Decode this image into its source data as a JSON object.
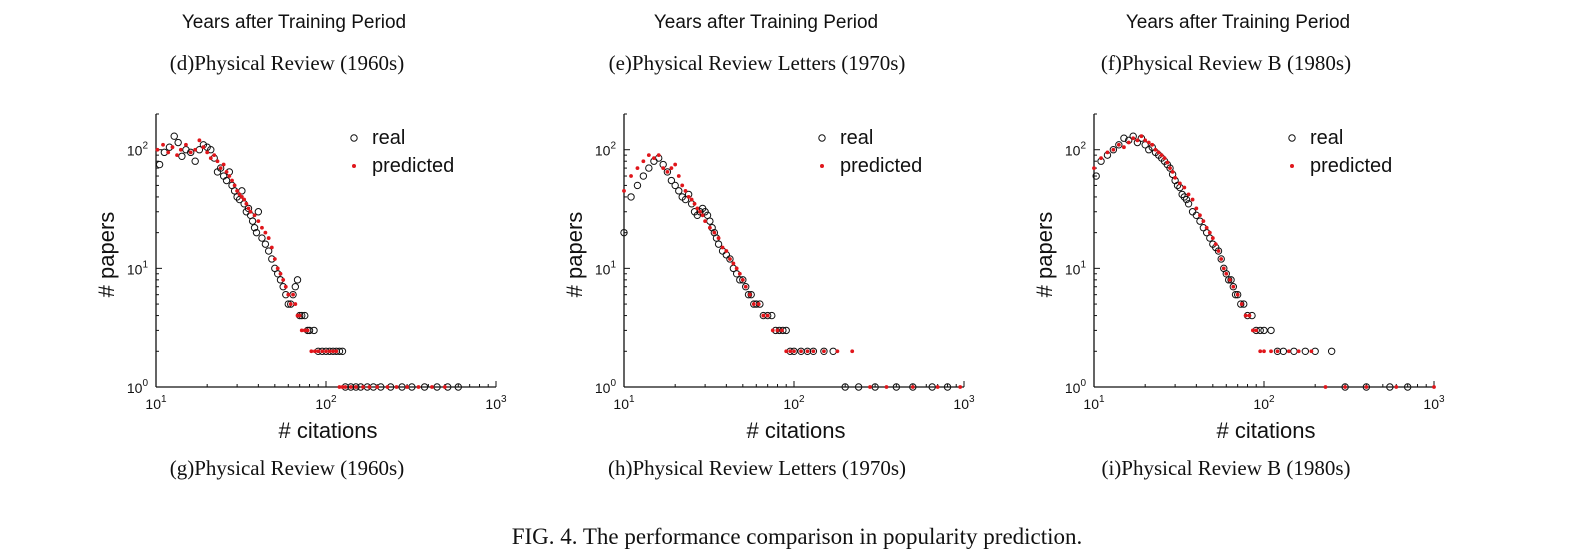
{
  "top_row": {
    "xlabels": [
      "Years after Training Period",
      "Years after Training Period",
      "Years after Training Period"
    ],
    "captions": [
      "(d)Physical Review (1960s)",
      "(e)Physical Review Letters (1970s)",
      "(f)Physical Review B (1980s)"
    ]
  },
  "figure_caption": "FIG. 4. The performance comparison in popularity prediction.",
  "colors": {
    "real": "#111111",
    "predicted": "#e0161b"
  },
  "chart_data": [
    {
      "type": "scatter",
      "caption": "(g)Physical Review (1960s)",
      "xlabel": "# citations",
      "ylabel": "# papers",
      "xscale": "log",
      "yscale": "log",
      "xlim": [
        10,
        1000
      ],
      "ylim": [
        1,
        200
      ],
      "xticks": [
        10,
        100,
        1000
      ],
      "xtick_labels": [
        "10",
        "10",
        "10"
      ],
      "xtick_exps": [
        "1",
        "2",
        "3"
      ],
      "yticks": [
        1,
        10,
        100
      ],
      "ytick_labels": [
        "10",
        "10",
        "10"
      ],
      "ytick_exps": [
        "0",
        "1",
        "2"
      ],
      "legend": [
        "real",
        "predicted"
      ],
      "legend_position": "top-right",
      "series": [
        {
          "name": "real",
          "marker": "open-circle",
          "x": [
            10.5,
            11.2,
            12.0,
            12.8,
            13.5,
            14.2,
            15.0,
            16.0,
            17.0,
            18.0,
            19.0,
            20.0,
            21.0,
            22.0,
            23.0,
            24.0,
            25.0,
            26.0,
            27.0,
            28.0,
            29.0,
            30.0,
            31.0,
            32.0,
            33.0,
            34.0,
            35.0,
            36.0,
            37.0,
            38.0,
            39.0,
            40.0,
            42.0,
            44.0,
            46.0,
            48.0,
            50.0,
            52.0,
            54.0,
            56.0,
            58.0,
            60.0,
            62.0,
            64.0,
            66.0,
            68.0,
            70.0,
            72.0,
            75.0,
            78.0,
            80.0,
            85.0,
            90.0,
            95.0,
            100.0,
            105.0,
            110.0,
            115.0,
            120.0,
            125.0,
            130.0,
            140.0,
            150.0,
            160.0,
            175.0,
            190.0,
            210.0,
            240.0,
            280.0,
            320.0,
            380.0,
            450.0,
            520.0,
            600.0
          ],
          "y": [
            75,
            95,
            105,
            130,
            115,
            88,
            100,
            95,
            80,
            100,
            110,
            105,
            100,
            85,
            65,
            70,
            60,
            55,
            65,
            50,
            45,
            40,
            38,
            45,
            35,
            30,
            32,
            28,
            25,
            22,
            20,
            30,
            18,
            16,
            14,
            12,
            10,
            9,
            8,
            7,
            6,
            5,
            5,
            6,
            7,
            8,
            4,
            4,
            4,
            3,
            3,
            3,
            2,
            2,
            2,
            2,
            2,
            2,
            2,
            2,
            1,
            1,
            1,
            1,
            1,
            1,
            1,
            1,
            1,
            1,
            1,
            1,
            1,
            1
          ]
        },
        {
          "name": "predicted",
          "marker": "dot",
          "x": [
            10.2,
            11.0,
            11.8,
            12.5,
            13.3,
            14.0,
            15.0,
            16.0,
            17.0,
            18.0,
            19.0,
            20.0,
            21.0,
            22.0,
            23.0,
            24.0,
            25.0,
            26.0,
            27.0,
            28.0,
            29.0,
            30.0,
            31.0,
            32.0,
            33.0,
            34.0,
            35.0,
            36.0,
            38.0,
            40.0,
            42.0,
            44.0,
            46.0,
            48.0,
            50.0,
            52.0,
            54.0,
            56.0,
            58.0,
            60.0,
            62.0,
            64.0,
            66.0,
            68.0,
            70.0,
            72.0,
            75.0,
            78.0,
            82.0,
            86.0,
            90.0,
            95.0,
            100.0,
            105.0,
            110.0,
            115.0,
            120.0,
            125.0,
            130.0,
            140.0,
            150.0,
            165.0,
            180.0,
            200.0,
            230.0,
            260.0,
            300.0,
            350.0,
            420.0,
            500.0
          ],
          "y": [
            100,
            110,
            95,
            105,
            90,
            100,
            110,
            95,
            100,
            120,
            105,
            95,
            85,
            90,
            80,
            70,
            75,
            65,
            60,
            55,
            50,
            45,
            42,
            40,
            38,
            35,
            32,
            30,
            28,
            25,
            22,
            20,
            18,
            15,
            12,
            10,
            9,
            8,
            7,
            6,
            5,
            6,
            5,
            4,
            4,
            3,
            3,
            3,
            2,
            2,
            2,
            2,
            2,
            2,
            2,
            2,
            1,
            1,
            1,
            1,
            1,
            1,
            1,
            1,
            1,
            1,
            1,
            1,
            1,
            1
          ]
        }
      ]
    },
    {
      "type": "scatter",
      "caption": "(h)Physical Review Letters (1970s)",
      "xlabel": "# citations",
      "ylabel": "# papers",
      "xscale": "log",
      "yscale": "log",
      "xlim": [
        10,
        1000
      ],
      "ylim": [
        1,
        200
      ],
      "xticks": [
        10,
        100,
        1000
      ],
      "xtick_labels": [
        "10",
        "10",
        "10"
      ],
      "xtick_exps": [
        "1",
        "2",
        "3"
      ],
      "yticks": [
        1,
        10,
        100
      ],
      "ytick_labels": [
        "10",
        "10",
        "10"
      ],
      "ytick_exps": [
        "0",
        "1",
        "2"
      ],
      "legend": [
        "real",
        "predicted"
      ],
      "legend_position": "top-right",
      "series": [
        {
          "name": "real",
          "marker": "open-circle",
          "x": [
            10.0,
            11.0,
            12.0,
            13.0,
            14.0,
            15.0,
            16.0,
            17.0,
            18.0,
            19.0,
            20.0,
            21.0,
            22.0,
            23.0,
            24.0,
            25.0,
            26.0,
            27.0,
            28.0,
            29.0,
            30.0,
            31.0,
            32.0,
            33.0,
            34.0,
            35.0,
            36.0,
            38.0,
            40.0,
            42.0,
            44.0,
            46.0,
            48.0,
            50.0,
            52.0,
            54.0,
            56.0,
            58.0,
            60.0,
            63.0,
            66.0,
            70.0,
            74.0,
            78.0,
            82.0,
            86.0,
            90.0,
            95.0,
            100.0,
            110.0,
            120.0,
            130.0,
            150.0,
            170.0,
            200.0,
            240.0,
            300.0,
            400.0,
            500.0,
            650.0,
            800.0
          ],
          "y": [
            20,
            40,
            50,
            60,
            70,
            80,
            85,
            75,
            65,
            55,
            50,
            45,
            40,
            38,
            42,
            35,
            30,
            28,
            30,
            32,
            30,
            28,
            25,
            22,
            20,
            18,
            16,
            14,
            13,
            12,
            10,
            9,
            8,
            8,
            7,
            6,
            6,
            5,
            5,
            5,
            4,
            4,
            4,
            3,
            3,
            3,
            3,
            2,
            2,
            2,
            2,
            2,
            2,
            2,
            1,
            1,
            1,
            1,
            1,
            1,
            1
          ]
        },
        {
          "name": "predicted",
          "marker": "dot",
          "x": [
            10.0,
            11.0,
            12.0,
            13.0,
            14.0,
            15.0,
            16.0,
            17.0,
            18.0,
            19.0,
            20.0,
            21.0,
            22.0,
            23.0,
            24.0,
            25.0,
            26.0,
            27.0,
            28.0,
            29.0,
            30.0,
            32.0,
            34.0,
            36.0,
            38.0,
            40.0,
            42.0,
            44.0,
            46.0,
            48.0,
            50.0,
            52.0,
            55.0,
            58.0,
            62.0,
            66.0,
            70.0,
            75.0,
            80.0,
            85.0,
            90.0,
            95.0,
            100.0,
            110.0,
            120.0,
            130.0,
            150.0,
            180.0,
            220.0,
            280.0,
            350.0,
            500.0,
            700.0,
            950.0
          ],
          "y": [
            45,
            60,
            70,
            80,
            90,
            85,
            90,
            70,
            65,
            70,
            75,
            60,
            50,
            45,
            40,
            38,
            35,
            32,
            30,
            28,
            25,
            22,
            20,
            18,
            15,
            14,
            12,
            11,
            10,
            9,
            8,
            7,
            6,
            5,
            5,
            4,
            4,
            3,
            3,
            3,
            2,
            2,
            2,
            2,
            2,
            2,
            2,
            2,
            2,
            1,
            1,
            1,
            1,
            1
          ]
        }
      ]
    },
    {
      "type": "scatter",
      "caption": "(i)Physical Review B (1980s)",
      "xlabel": "# citations",
      "ylabel": "# papers",
      "xscale": "log",
      "yscale": "log",
      "xlim": [
        10,
        1000
      ],
      "ylim": [
        1,
        200
      ],
      "xticks": [
        10,
        100,
        1000
      ],
      "xtick_labels": [
        "10",
        "10",
        "10"
      ],
      "xtick_exps": [
        "1",
        "2",
        "3"
      ],
      "yticks": [
        1,
        10,
        100
      ],
      "ytick_labels": [
        "10",
        "10",
        "10"
      ],
      "ytick_exps": [
        "0",
        "1",
        "2"
      ],
      "legend": [
        "real",
        "predicted"
      ],
      "legend_position": "top-right",
      "series": [
        {
          "name": "real",
          "marker": "open-circle",
          "x": [
            10.3,
            11.0,
            12.0,
            13.0,
            14.0,
            15.0,
            16.0,
            17.0,
            18.0,
            19.0,
            20.0,
            21.0,
            22.0,
            23.0,
            24.0,
            25.0,
            26.0,
            27.0,
            28.0,
            29.0,
            30.0,
            31.0,
            32.0,
            33.0,
            34.0,
            35.0,
            36.0,
            38.0,
            40.0,
            42.0,
            44.0,
            46.0,
            48.0,
            50.0,
            52.0,
            54.0,
            56.0,
            58.0,
            60.0,
            62.0,
            64.0,
            66.0,
            68.0,
            70.0,
            73.0,
            76.0,
            80.0,
            85.0,
            90.0,
            95.0,
            100.0,
            110.0,
            120.0,
            130.0,
            150.0,
            175.0,
            200.0,
            250.0,
            300.0,
            400.0,
            550.0,
            700.0
          ],
          "y": [
            60,
            80,
            90,
            100,
            110,
            125,
            120,
            130,
            115,
            125,
            110,
            100,
            105,
            95,
            90,
            85,
            80,
            75,
            70,
            62,
            55,
            50,
            48,
            42,
            40,
            38,
            35,
            30,
            28,
            25,
            22,
            20,
            18,
            16,
            15,
            14,
            12,
            10,
            9,
            8,
            8,
            7,
            6,
            6,
            5,
            5,
            4,
            4,
            3,
            3,
            3,
            3,
            2,
            2,
            2,
            2,
            2,
            2,
            1,
            1,
            1,
            1
          ]
        },
        {
          "name": "predicted",
          "marker": "dot",
          "x": [
            10.0,
            11.0,
            12.0,
            13.0,
            14.0,
            15.0,
            16.0,
            17.0,
            18.0,
            19.0,
            20.0,
            21.0,
            22.0,
            23.0,
            24.0,
            25.0,
            26.0,
            27.0,
            28.0,
            29.0,
            30.0,
            32.0,
            34.0,
            36.0,
            38.0,
            40.0,
            42.0,
            44.0,
            46.0,
            48.0,
            50.0,
            52.0,
            54.0,
            56.0,
            58.0,
            60.0,
            63.0,
            66.0,
            70.0,
            74.0,
            78.0,
            82.0,
            86.0,
            90.0,
            95.0,
            100.0,
            110.0,
            120.0,
            140.0,
            160.0,
            190.0,
            230.0,
            300.0,
            400.0,
            600.0,
            1000.0
          ],
          "y": [
            70,
            85,
            95,
            100,
            110,
            105,
            115,
            125,
            120,
            130,
            120,
            115,
            110,
            100,
            95,
            90,
            85,
            78,
            70,
            65,
            58,
            52,
            48,
            42,
            38,
            32,
            28,
            25,
            22,
            20,
            18,
            16,
            14,
            12,
            10,
            9,
            8,
            7,
            6,
            5,
            4,
            4,
            3,
            3,
            2,
            2,
            2,
            2,
            2,
            2,
            2,
            1,
            1,
            1,
            1,
            1
          ]
        }
      ]
    }
  ]
}
